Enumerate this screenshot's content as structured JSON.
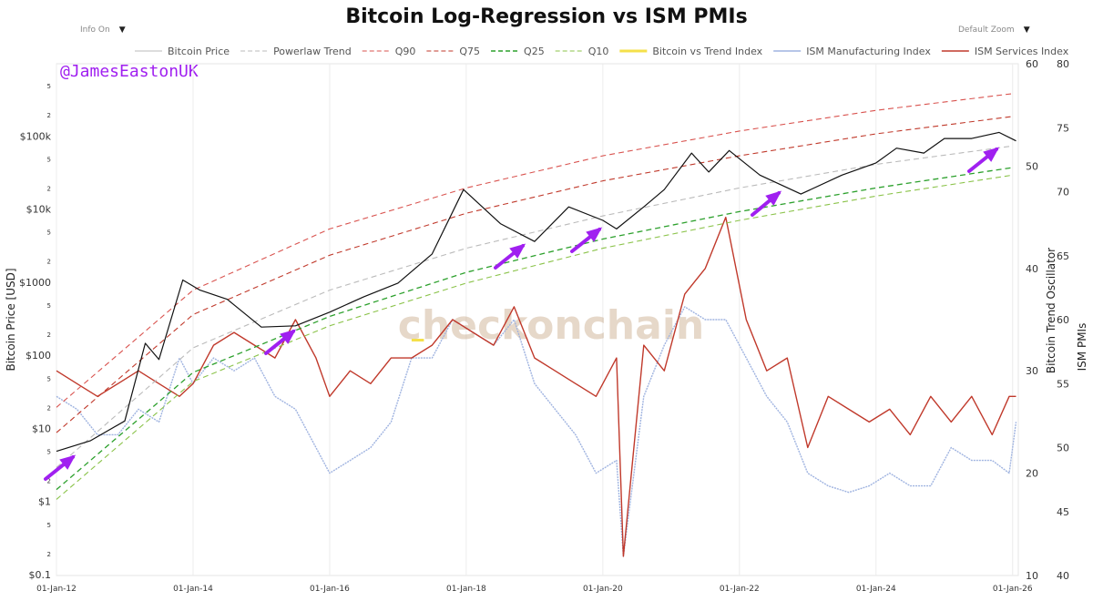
{
  "header": {
    "title": "Bitcoin Log-Regression vs ISM PMIs",
    "info_toggle": "Info On",
    "zoom_toggle": "Default Zoom",
    "author_handle": "@JamesEastonUK",
    "watermark": "checkonchain"
  },
  "colors": {
    "price": "#111111",
    "trend": "#bbbbbb",
    "q90": "#d9534f",
    "q75": "#c0392b",
    "q25": "#2ca02c",
    "q10": "#8bc34a",
    "index": "#f5e04a",
    "manufacturing": "#9fb3e0",
    "services": "#c0392b",
    "arrow": "#a020f0"
  },
  "chart_data": {
    "type": "line",
    "title": "Bitcoin Log-Regression vs ISM PMIs",
    "legend": [
      "Bitcoin Price",
      "Powerlaw Trend",
      "Q90",
      "Q75",
      "Q25",
      "Q10",
      "Bitcoin vs Trend Index",
      "ISM Manufacturing Index",
      "ISM Services Index"
    ],
    "legend_placement": "top",
    "grid": "vertical",
    "x_ticks": [
      "01-Jan-12",
      "01-Jan-14",
      "01-Jan-16",
      "01-Jan-18",
      "01-Jan-20",
      "01-Jan-22",
      "01-Jan-24",
      "01-Jan-26"
    ],
    "xlim": [
      "2012-01-01",
      "2026-02-01"
    ],
    "y_left": {
      "label": "Bitcoin Price [USD]",
      "scale": "log",
      "range": [
        0.1,
        1000000
      ],
      "ticks": [
        "$0.1",
        "2",
        "5",
        "$1",
        "2",
        "5",
        "$10",
        "2",
        "5",
        "$100",
        "2",
        "5",
        "$1000",
        "2",
        "5",
        "$10k",
        "2",
        "5",
        "$100k",
        "2",
        "5"
      ]
    },
    "y_mid": {
      "label": "Bitcoin Trend Oscillator",
      "range": [
        10,
        60
      ],
      "ticks": [
        "10",
        "20",
        "30",
        "40",
        "50",
        "60"
      ]
    },
    "y_right": {
      "label": "ISM PMIs",
      "range": [
        40,
        80
      ],
      "ticks": [
        "40",
        "45",
        "50",
        "55",
        "60",
        "65",
        "70",
        "75",
        "80"
      ]
    },
    "bitcoin_price": {
      "x": [
        2012.0,
        2012.5,
        2013.0,
        2013.3,
        2013.5,
        2013.85,
        2014.1,
        2014.5,
        2015.0,
        2015.5,
        2016.0,
        2016.5,
        2017.0,
        2017.5,
        2017.96,
        2018.5,
        2019.0,
        2019.5,
        2020.0,
        2020.2,
        2020.6,
        2020.9,
        2021.3,
        2021.55,
        2021.85,
        2022.3,
        2022.9,
        2023.5,
        2024.0,
        2024.3,
        2024.7,
        2025.0,
        2025.4,
        2025.8,
        2026.05
      ],
      "y": [
        5,
        7,
        13,
        150,
        90,
        1100,
        800,
        600,
        250,
        260,
        400,
        650,
        1000,
        2500,
        19000,
        6500,
        3700,
        11000,
        7200,
        5500,
        11000,
        19000,
        60000,
        33000,
        65000,
        30000,
        16500,
        30000,
        44000,
        70000,
        60000,
        95000,
        95000,
        115000,
        88000
      ]
    },
    "powerlaw_trend": {
      "x": [
        2012.0,
        2014.0,
        2016.0,
        2018.0,
        2020.0,
        2022.0,
        2024.0,
        2026.0
      ],
      "y": [
        3,
        130,
        800,
        3000,
        8300,
        20000,
        42000,
        75000
      ]
    },
    "q90": {
      "x": [
        2012.0,
        2014.0,
        2016.0,
        2018.0,
        2020.0,
        2022.0,
        2024.0,
        2026.0
      ],
      "y": [
        20,
        800,
        5500,
        20000,
        55000,
        120000,
        230000,
        390000
      ]
    },
    "q75": {
      "x": [
        2012.0,
        2014.0,
        2016.0,
        2018.0,
        2020.0,
        2022.0,
        2024.0,
        2026.0
      ],
      "y": [
        9,
        370,
        2400,
        9000,
        25000,
        55000,
        110000,
        190000
      ]
    },
    "q25": {
      "x": [
        2012.0,
        2014.0,
        2016.0,
        2018.0,
        2020.0,
        2022.0,
        2024.0,
        2026.0
      ],
      "y": [
        1.5,
        60,
        350,
        1400,
        4000,
        9500,
        20000,
        38000
      ]
    },
    "q10": {
      "x": [
        2012.0,
        2014.0,
        2016.0,
        2018.0,
        2020.0,
        2022.0,
        2024.0,
        2026.0
      ],
      "y": [
        1.1,
        45,
        260,
        1000,
        3000,
        7200,
        15500,
        30000
      ]
    },
    "bitcoin_vs_trend_index": {
      "x": [
        2017.2,
        2017.38
      ],
      "y": [
        33,
        33
      ]
    },
    "ism_manufacturing": {
      "x": [
        2012.0,
        2012.3,
        2012.6,
        2012.9,
        2013.2,
        2013.5,
        2013.8,
        2014.0,
        2014.3,
        2014.6,
        2014.9,
        2015.2,
        2015.5,
        2015.8,
        2016.0,
        2016.3,
        2016.6,
        2016.9,
        2017.2,
        2017.5,
        2017.8,
        2018.1,
        2018.4,
        2018.7,
        2019.0,
        2019.3,
        2019.6,
        2019.9,
        2020.2,
        2020.3,
        2020.6,
        2020.9,
        2021.2,
        2021.5,
        2021.8,
        2022.1,
        2022.4,
        2022.7,
        2023.0,
        2023.3,
        2023.6,
        2023.9,
        2024.2,
        2024.5,
        2024.8,
        2025.1,
        2025.4,
        2025.7,
        2025.95,
        2026.05
      ],
      "y": [
        54,
        53,
        51,
        51,
        53,
        52,
        57,
        55,
        57,
        56,
        57,
        54,
        53,
        50,
        48,
        49,
        50,
        52,
        57,
        57,
        60,
        59,
        58,
        60,
        55,
        53,
        51,
        48,
        49,
        41.5,
        54,
        58,
        61,
        60,
        60,
        57,
        54,
        52,
        48,
        47,
        46.5,
        47,
        48,
        47,
        47,
        50,
        49,
        49,
        48,
        52
      ]
    },
    "ism_services": {
      "x": [
        2012.0,
        2012.3,
        2012.6,
        2012.9,
        2013.2,
        2013.5,
        2013.8,
        2014.0,
        2014.3,
        2014.6,
        2014.9,
        2015.2,
        2015.5,
        2015.8,
        2016.0,
        2016.3,
        2016.6,
        2016.9,
        2017.2,
        2017.5,
        2017.8,
        2018.1,
        2018.4,
        2018.7,
        2019.0,
        2019.3,
        2019.6,
        2019.9,
        2020.2,
        2020.3,
        2020.6,
        2020.9,
        2021.2,
        2021.5,
        2021.8,
        2022.1,
        2022.4,
        2022.7,
        2023.0,
        2023.3,
        2023.6,
        2023.9,
        2024.2,
        2024.5,
        2024.8,
        2025.1,
        2025.4,
        2025.7,
        2025.95,
        2026.05
      ],
      "y": [
        56,
        55,
        54,
        55,
        56,
        55,
        54,
        55,
        58,
        59,
        58,
        57,
        60,
        57,
        54,
        56,
        55,
        57,
        57,
        58,
        60,
        59,
        58,
        61,
        57,
        56,
        55,
        54,
        57,
        41.5,
        58,
        56,
        62,
        64,
        68,
        60,
        56,
        57,
        50,
        54,
        53,
        52,
        53,
        51,
        54,
        52,
        54,
        51,
        54,
        54
      ]
    }
  }
}
